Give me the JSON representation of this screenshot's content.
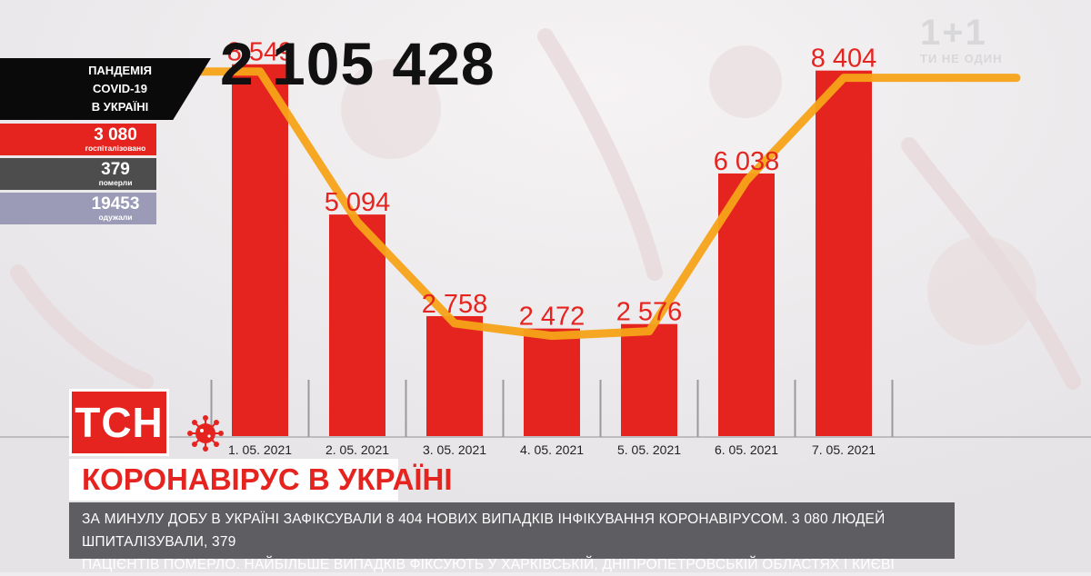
{
  "total_cases": "2 105 428",
  "panel": {
    "title_lines": [
      "ПАНДЕМІЯ",
      "COVID-19",
      "В УКРАЇНІ"
    ],
    "hospitalized": {
      "value": "3 080",
      "label": "госпіталізовано"
    },
    "died": {
      "value": "379",
      "label": "померли"
    },
    "recovered": {
      "value": "19453",
      "label": "одужали"
    }
  },
  "logo": {
    "mark": "1+1",
    "tagline": "ТИ НЕ ОДИН"
  },
  "channel_badge": "ТСН",
  "headline": "КОРОНАВІРУС В УКРАЇНІ",
  "ticker_lines": [
    "ЗА МИНУЛУ ДОБУ В УКРАЇНІ ЗАФІКСУВАЛИ 8 404 НОВИХ ВИПАДКІВ ІНФІКУВАННЯ КОРОНАВІРУСОМ. 3 080 ЛЮДЕЙ ШПИТАЛІЗУВАЛИ, 379",
    "ПАЦІЄНТІВ ПОМЕРЛО. НАЙБІЛЬШЕ ВИПАДКІВ ФІКСУЮТЬ У ХАРКІВСЬКІЙ, ДНІПРОПЕТРОВСЬКІЙ ОБЛАСТЯХ І КИЄВІ"
  ],
  "colors": {
    "bar": "#e52420",
    "trend": "#f5a318",
    "label": "#e52420",
    "brand_red": "#e52420"
  },
  "chart_data": {
    "type": "bar",
    "categories": [
      "1. 05. 2021",
      "2. 05. 2021",
      "3. 05. 2021",
      "4. 05. 2021",
      "5. 05. 2021",
      "6. 05. 2021",
      "7. 05. 2021"
    ],
    "values": [
      8549,
      5094,
      2758,
      2472,
      2576,
      6038,
      8404
    ],
    "value_labels": [
      "8 549",
      "5 094",
      "2 758",
      "2 472",
      "2 576",
      "6 038",
      "8 404"
    ],
    "ylim": [
      0,
      9400
    ],
    "trend_line": true,
    "grid": false
  }
}
